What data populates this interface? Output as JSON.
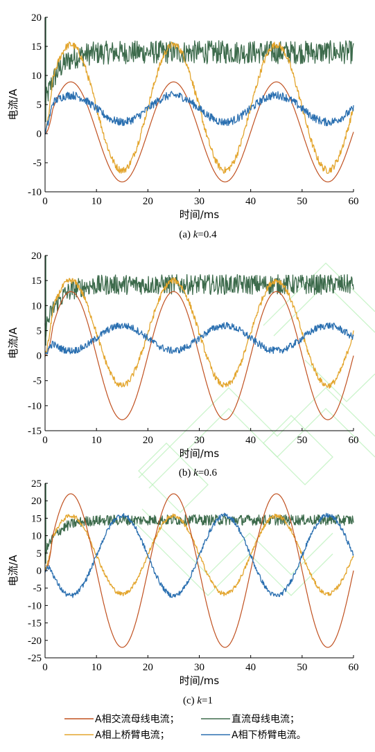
{
  "colors": {
    "ac": "#c0501f",
    "dc": "#3d6b4c",
    "upper": "#e3a52d",
    "lower": "#2a6fb0"
  },
  "chart_data": [
    {
      "type": "line",
      "caption": "(a) k=0.4",
      "caption_prefix": "(a) ",
      "caption_k": "k",
      "caption_value": "=0.4",
      "xlabel": "时间/ms",
      "ylabel": "电流/A",
      "xlim": [
        0,
        60
      ],
      "ylim": [
        -10,
        20
      ],
      "xticks": [
        0,
        10,
        20,
        30,
        40,
        50,
        60
      ],
      "yticks": [
        -10,
        -5,
        0,
        5,
        10,
        15,
        20
      ],
      "grid": false,
      "series": [
        {
          "key": "ac",
          "name": "A相交流母线电流",
          "model": {
            "type": "sine",
            "offset": 0.3,
            "amplitude": 8.6,
            "period_ms": 20,
            "peak_ms": 5
          }
        },
        {
          "key": "dc",
          "name": "直流母线电流",
          "model": {
            "type": "step",
            "initial": 5,
            "level": 14,
            "rise_ms": 2.5,
            "noise": 2.0
          }
        },
        {
          "key": "upper",
          "name": "A相上桥臂电流",
          "model": {
            "type": "sine",
            "offset": 4.5,
            "amplitude": 10.8,
            "period_ms": 20,
            "peak_ms": 5,
            "noise": 0.6
          }
        },
        {
          "key": "lower",
          "name": "A相下桥臂电流",
          "model": {
            "type": "sine",
            "offset": 4.3,
            "amplitude": 2.3,
            "period_ms": 20,
            "peak_ms": 5,
            "noise": 0.7
          }
        }
      ]
    },
    {
      "type": "line",
      "caption": "(b) k=0.6",
      "caption_prefix": "(b) ",
      "caption_k": "k",
      "caption_value": "=0.6",
      "xlabel": "时间/ms",
      "ylabel": "电流/A",
      "xlim": [
        0,
        60
      ],
      "ylim": [
        -15,
        20
      ],
      "xticks": [
        0,
        10,
        20,
        30,
        40,
        50,
        60
      ],
      "yticks": [
        -15,
        -10,
        -5,
        0,
        5,
        10,
        15,
        20
      ],
      "grid": false,
      "series": [
        {
          "key": "ac",
          "name": "A相交流母线电流",
          "model": {
            "type": "sine",
            "offset": 0,
            "amplitude": 12.8,
            "period_ms": 20,
            "peak_ms": 5
          }
        },
        {
          "key": "dc",
          "name": "直流母线电流",
          "model": {
            "type": "step",
            "initial": 5,
            "level": 14.2,
            "rise_ms": 2.5,
            "noise": 2.0
          }
        },
        {
          "key": "upper",
          "name": "A相上桥臂电流",
          "model": {
            "type": "sine",
            "offset": 4.5,
            "amplitude": 10.5,
            "period_ms": 20,
            "peak_ms": 5,
            "noise": 0.6
          }
        },
        {
          "key": "lower",
          "name": "A相下桥臂电流",
          "model": {
            "type": "sine",
            "offset": 3.5,
            "amplitude": 2.5,
            "period_ms": 20,
            "peak_ms": 15,
            "noise": 0.7
          }
        }
      ]
    },
    {
      "type": "line",
      "caption": "(c) k=1",
      "caption_prefix": "(c) ",
      "caption_k": "k",
      "caption_value": "=1",
      "xlabel": "时间/ms",
      "ylabel": "电流/A",
      "xlim": [
        0,
        60
      ],
      "ylim": [
        -25,
        25
      ],
      "xticks": [
        0,
        10,
        20,
        30,
        40,
        50,
        60
      ],
      "yticks": [
        -25,
        -20,
        -15,
        -10,
        -5,
        0,
        5,
        10,
        15,
        20,
        25
      ],
      "grid": false,
      "series": [
        {
          "key": "ac",
          "name": "A相交流母线电流",
          "model": {
            "type": "sine",
            "offset": 0,
            "amplitude": 22,
            "period_ms": 20,
            "peak_ms": 5
          }
        },
        {
          "key": "dc",
          "name": "直流母线电流",
          "model": {
            "type": "step",
            "initial": 5,
            "level": 14.5,
            "rise_ms": 2.5,
            "noise": 1.5
          }
        },
        {
          "key": "upper",
          "name": "A相上桥臂电流",
          "model": {
            "type": "sine",
            "offset": 4.5,
            "amplitude": 11.2,
            "period_ms": 20,
            "peak_ms": 5,
            "noise": 0.6
          }
        },
        {
          "key": "lower",
          "name": "A相下桥臂电流",
          "model": {
            "type": "sine",
            "offset": 4.3,
            "amplitude": 11.5,
            "period_ms": 20,
            "peak_ms": 15,
            "noise": 0.7
          }
        }
      ]
    }
  ],
  "legend": {
    "items": [
      {
        "key": "ac",
        "label": "A相交流母线电流；"
      },
      {
        "key": "dc",
        "label": "直流母线电流；"
      },
      {
        "key": "upper",
        "label": "A相上桥臂电流；"
      },
      {
        "key": "lower",
        "label": "A相下桥臂电流。"
      }
    ]
  }
}
